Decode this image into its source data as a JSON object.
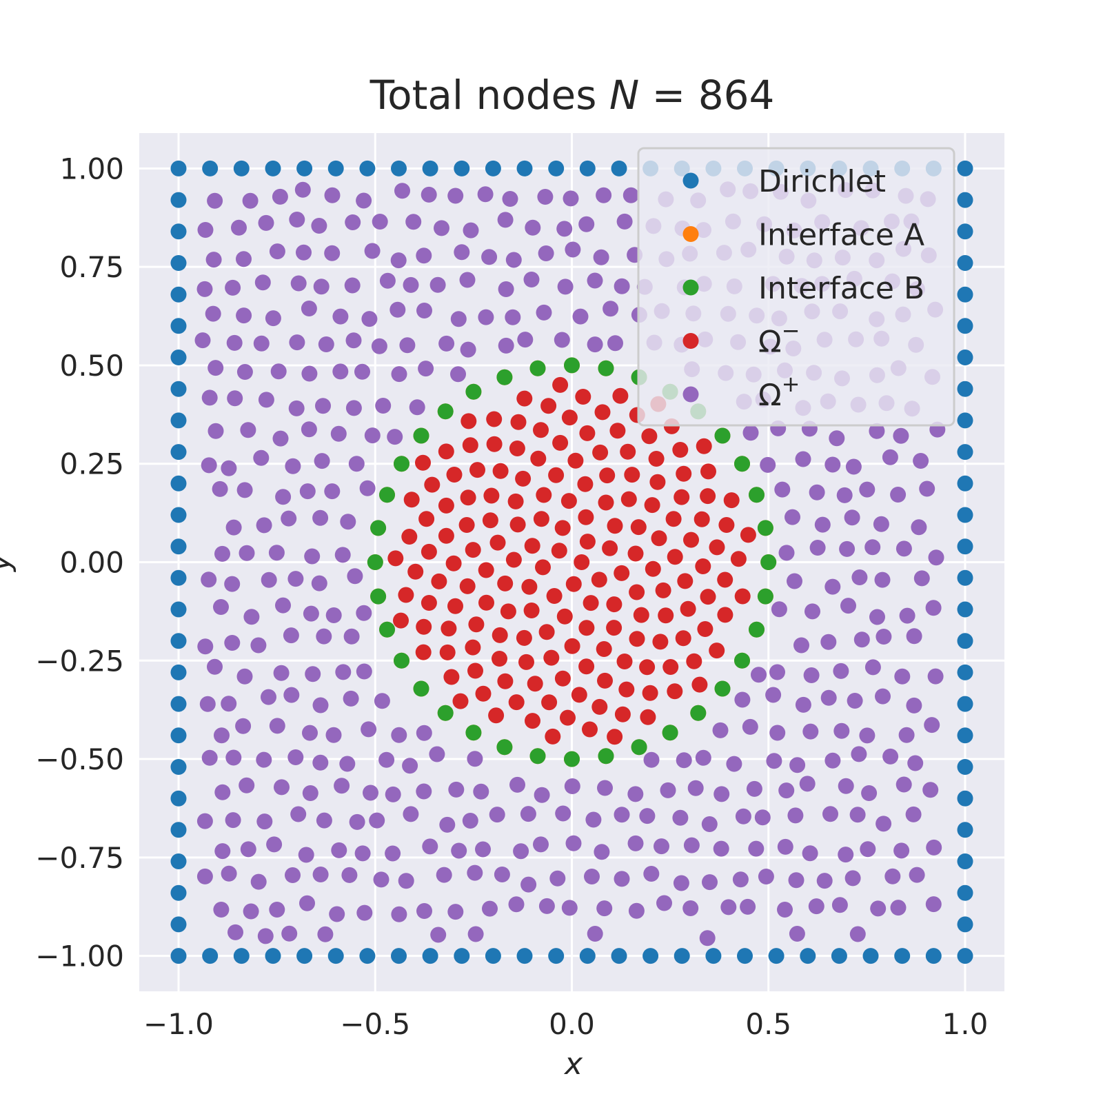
{
  "chart_data": {
    "type": "scatter",
    "title_prefix": "Total nodes ",
    "title_var": "N",
    "title_suffix": " = 864",
    "xlabel": "x",
    "ylabel": "y",
    "xlim": [
      -1.1,
      1.1
    ],
    "ylim": [
      -1.09,
      1.09
    ],
    "xticks": [
      -1.0,
      -0.5,
      0.0,
      0.5,
      1.0
    ],
    "xtick_labels": [
      "−1.0",
      "−0.5",
      "0.0",
      "0.5",
      "1.0"
    ],
    "yticks": [
      -1.0,
      -0.75,
      -0.5,
      -0.25,
      0.0,
      0.25,
      0.5,
      0.75,
      1.0
    ],
    "ytick_labels": [
      "−1.00",
      "−0.75",
      "−0.50",
      "−0.25",
      "0.00",
      "0.25",
      "0.50",
      "0.75",
      "1.00"
    ],
    "grid": true,
    "legend_placement": "upper right",
    "background_color": "#eaeaf2",
    "series": [
      {
        "name": "Dirichlet",
        "color": "#1f77b4",
        "pattern": "square_boundary",
        "boundary_values": [
          -1.0,
          -0.92,
          -0.84,
          -0.76,
          -0.68,
          -0.6,
          -0.52,
          -0.44,
          -0.36,
          -0.28,
          -0.2,
          -0.12,
          -0.04,
          0.04,
          0.12,
          0.2,
          0.28,
          0.36,
          0.44,
          0.52,
          0.6,
          0.68,
          0.76,
          0.84,
          0.92,
          1.0
        ]
      },
      {
        "name": "Interface A",
        "color": "#ff7f0e",
        "pattern": "circle",
        "radius": 0.5,
        "count": 36
      },
      {
        "name": "Interface B",
        "color": "#2ca02c",
        "pattern": "circle",
        "radius": 0.5,
        "count": 36
      },
      {
        "name": "Ω",
        "name_sup": "−",
        "color": "#d62728",
        "pattern": "inside_circle",
        "radius": 0.46
      },
      {
        "name": "Ω",
        "name_sup": "+",
        "color": "#9467bd",
        "pattern": "outside_circle",
        "radius": 0.54
      }
    ]
  }
}
